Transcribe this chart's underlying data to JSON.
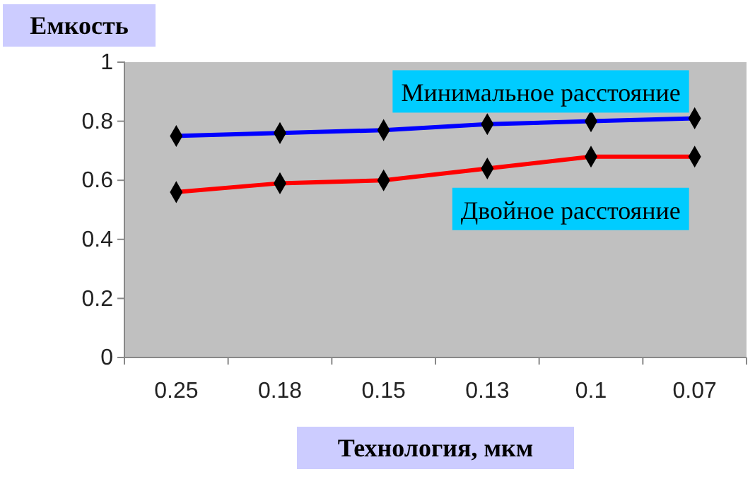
{
  "chart_data": {
    "type": "line",
    "ylabel": "Емкость",
    "xlabel": "Технология, мкм",
    "categories": [
      "0.25",
      "0.18",
      "0.15",
      "0.13",
      "0.1",
      "0.07"
    ],
    "series": [
      {
        "name": "Минимальное расстояние",
        "color": "#0000ff",
        "values": [
          0.75,
          0.76,
          0.77,
          0.79,
          0.8,
          0.81
        ]
      },
      {
        "name": "Двойное расстояние",
        "color": "#ff0000",
        "values": [
          0.56,
          0.59,
          0.6,
          0.64,
          0.68,
          0.68
        ]
      }
    ],
    "ylim": [
      0,
      1
    ],
    "yticks": [
      0,
      0.2,
      0.4,
      0.6,
      0.8,
      1
    ],
    "marker": "diamond",
    "grid": false,
    "legend": false
  }
}
